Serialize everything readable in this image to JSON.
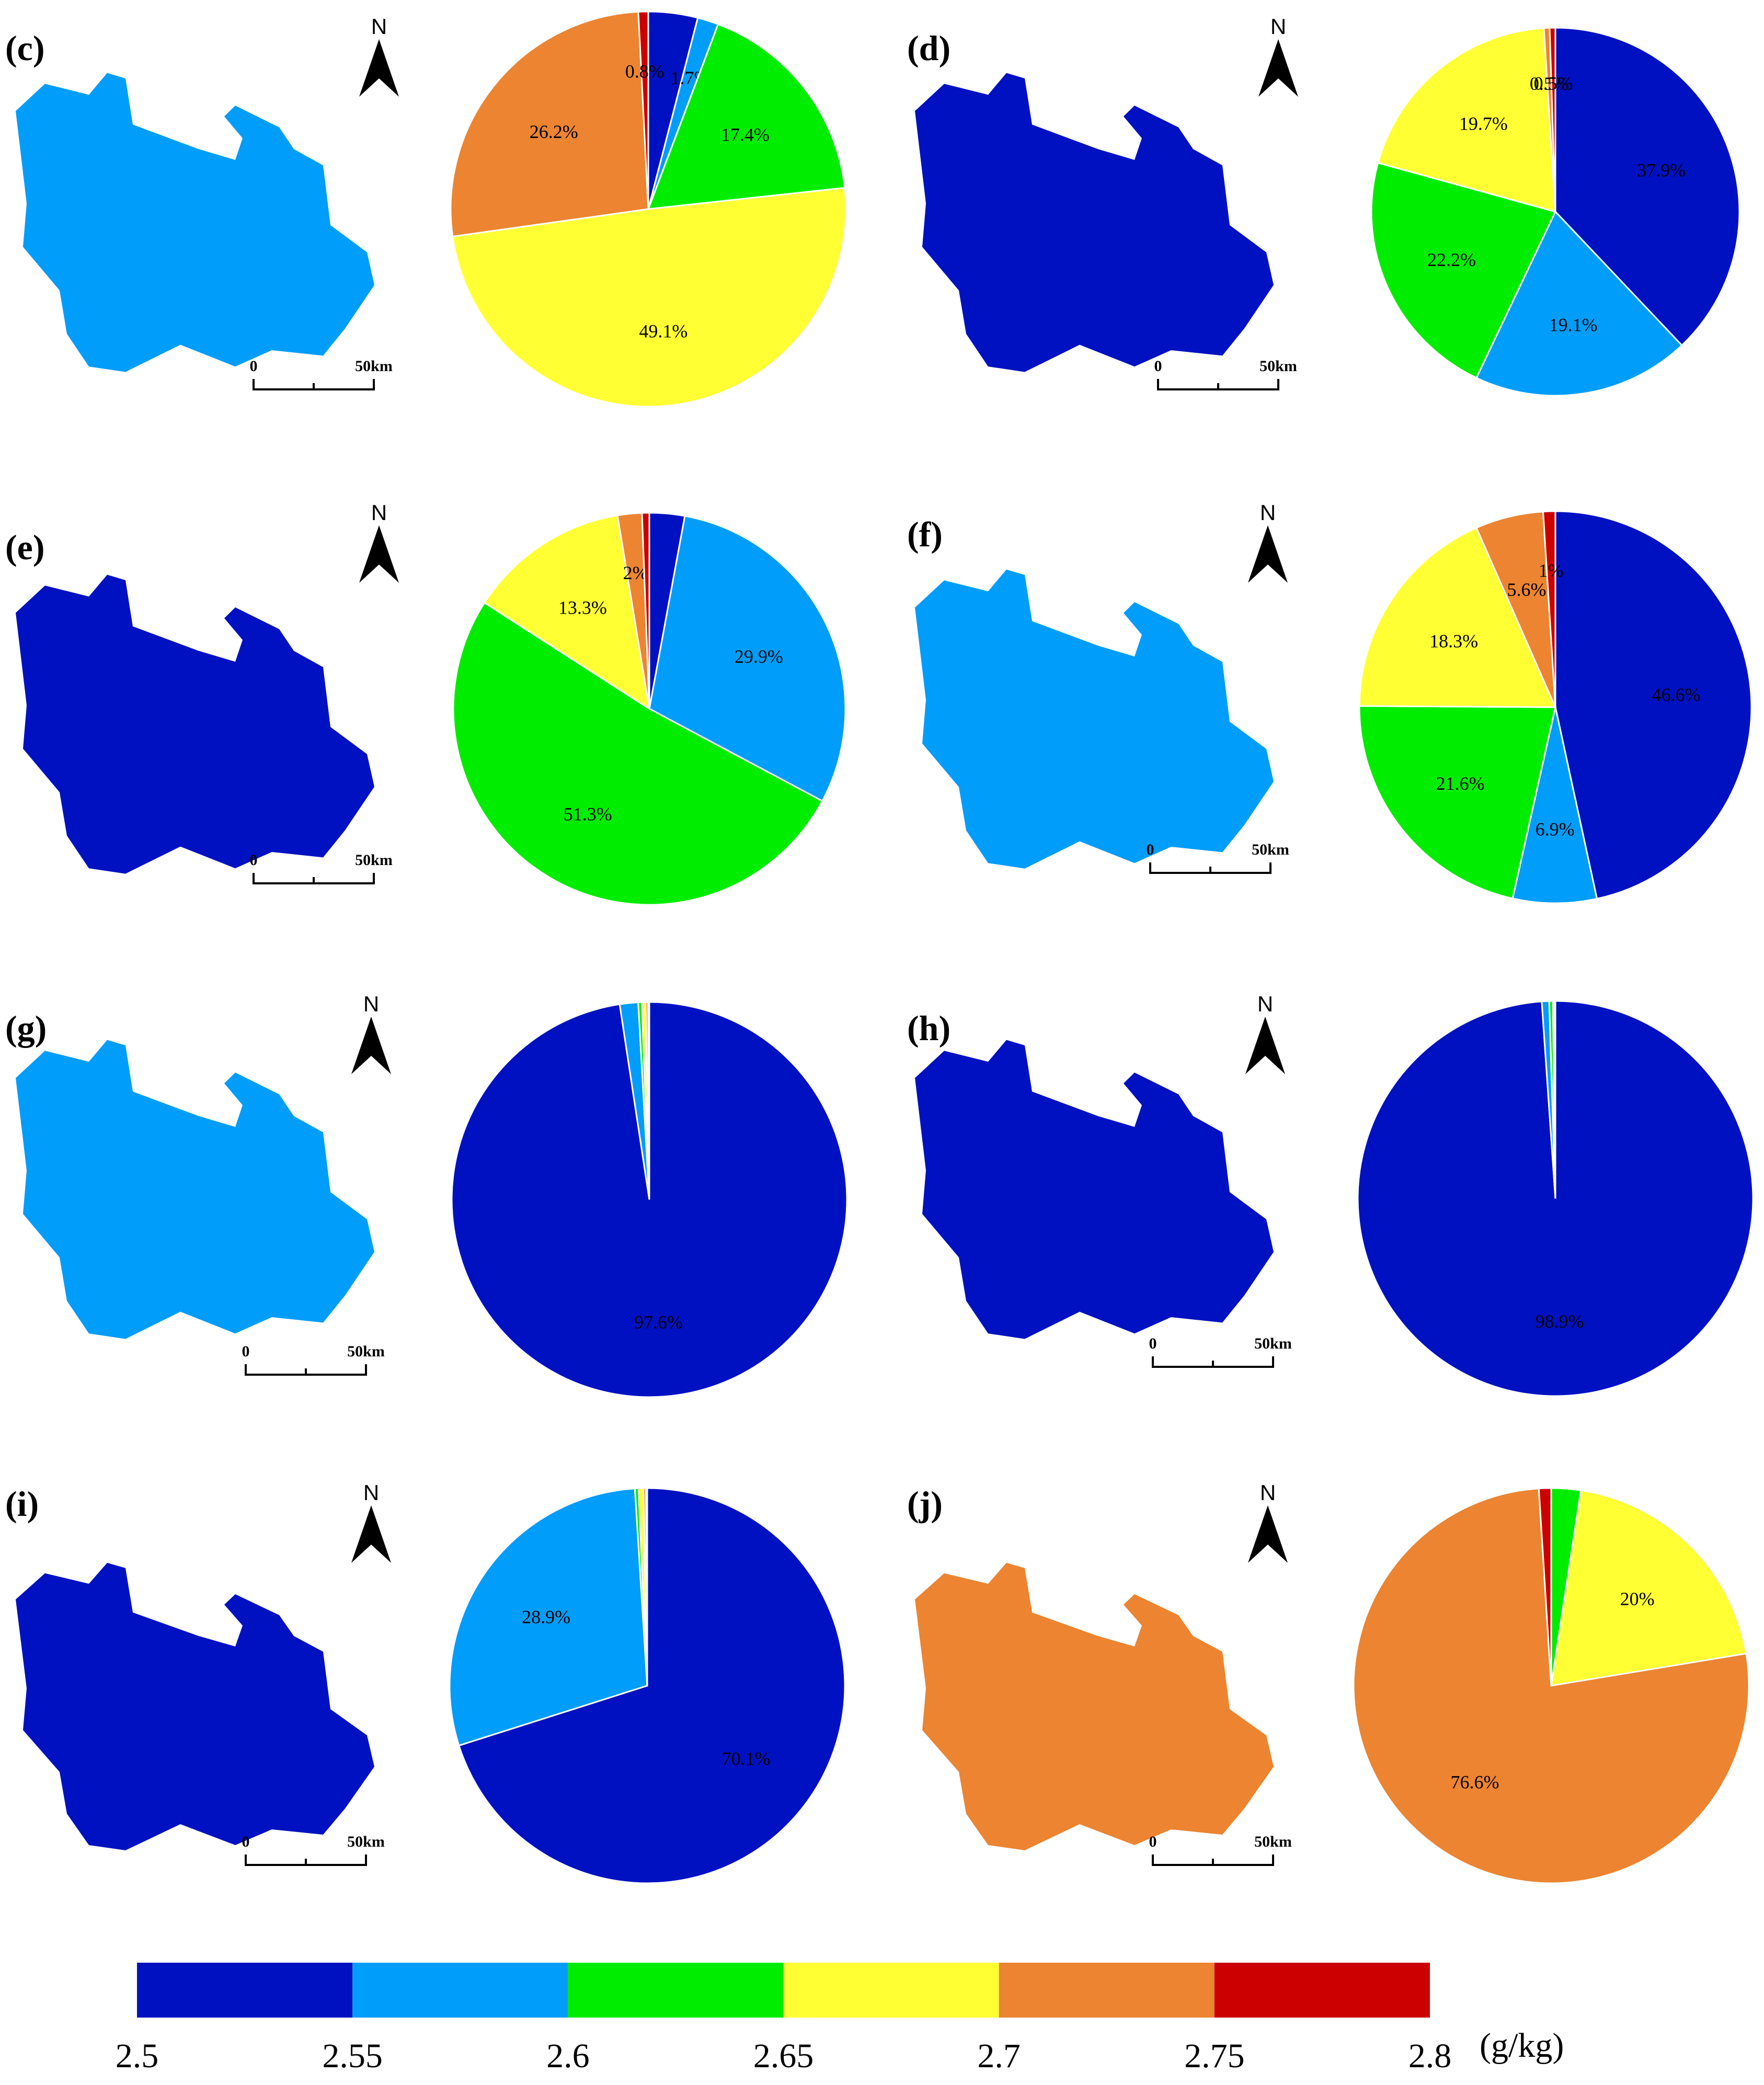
{
  "colors": [
    "#0011c2",
    "#009dfa",
    "#00ed00",
    "#ffff33",
    "#ec8431",
    "#cc0000"
  ],
  "legend": {
    "ticks": [
      "2.5",
      "2.55",
      "2.6",
      "2.65",
      "2.7",
      "2.75",
      "2.8"
    ],
    "unit": "(g/kg)"
  },
  "map": {
    "north_label": "N",
    "scale_zero": "0",
    "scale_end": "50km"
  },
  "chart_data": [
    {
      "type": "pie",
      "panel": "(c)",
      "values": [
        4.0,
        1.7,
        17.4,
        49.1,
        26.2,
        0.8
      ],
      "labels": [
        "",
        "1.7%",
        "17.4%",
        "49.1%",
        "26.2%",
        "0.8%"
      ]
    },
    {
      "type": "pie",
      "panel": "(d)",
      "values": [
        37.9,
        19.1,
        22.2,
        19.7,
        0.5,
        0.5
      ],
      "labels": [
        "37.9%",
        "19.1%",
        "22.2%",
        "19.7%",
        "0.5%",
        "0.5%"
      ]
    },
    {
      "type": "pie",
      "panel": "(e)",
      "values": [
        2.9,
        29.9,
        51.3,
        13.3,
        2.0,
        0.6
      ],
      "labels": [
        "",
        "29.9%",
        "51.3%",
        "13.3%",
        "2%",
        ""
      ]
    },
    {
      "type": "pie",
      "panel": "(f)",
      "values": [
        46.6,
        6.9,
        21.6,
        18.3,
        5.6,
        1.0
      ],
      "labels": [
        "46.6%",
        "6.9%",
        "21.6%",
        "18.3%",
        "5.6%",
        "1%"
      ]
    },
    {
      "type": "pie",
      "panel": "(g)",
      "values": [
        97.6,
        1.5,
        0.3,
        0.3,
        0.2,
        0.1
      ],
      "labels": [
        "97.6%",
        "",
        "",
        "",
        "",
        ""
      ]
    },
    {
      "type": "pie",
      "panel": "(h)",
      "values": [
        98.9,
        0.6,
        0.3,
        0.1,
        0.1,
        0.0
      ],
      "labels": [
        "98.9%",
        "",
        "",
        "",
        "",
        ""
      ]
    },
    {
      "type": "pie",
      "panel": "(i)",
      "values": [
        70.1,
        28.9,
        0.3,
        0.4,
        0.2,
        0.1
      ],
      "labels": [
        "70.1%",
        "28.9%",
        "",
        "",
        "",
        ""
      ]
    },
    {
      "type": "pie",
      "panel": "(j)",
      "values": [
        0.0,
        0.0,
        2.4,
        20.0,
        76.6,
        1.0
      ],
      "labels": [
        "",
        "",
        "",
        "20%",
        "76.6%",
        ""
      ]
    }
  ]
}
